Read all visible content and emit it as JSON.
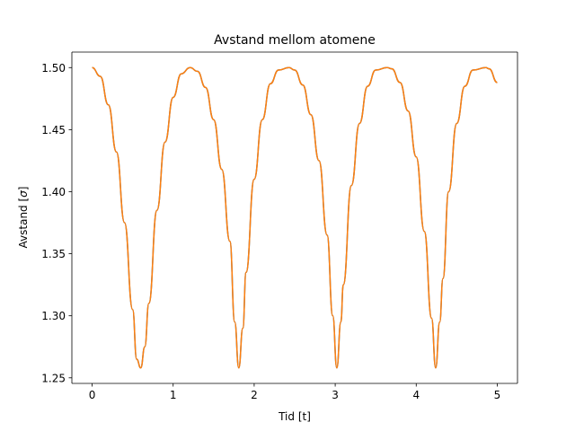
{
  "chart_data": {
    "type": "line",
    "title": "Avstand mellom atomene",
    "xlabel": "Tid [t]",
    "ylabel_prefix": "Avstand [",
    "ylabel_symbol": "σ",
    "ylabel_suffix": "]",
    "xlim": [
      -0.25,
      5.25
    ],
    "ylim": [
      1.2455,
      1.5125
    ],
    "x_ticks": [
      0,
      1,
      2,
      3,
      4,
      5
    ],
    "x_tick_labels": [
      "0",
      "1",
      "2",
      "3",
      "4",
      "5"
    ],
    "y_ticks": [
      1.25,
      1.3,
      1.35,
      1.4,
      1.45,
      1.5
    ],
    "y_tick_labels": [
      "1.25",
      "1.30",
      "1.35",
      "1.40",
      "1.45",
      "1.50"
    ],
    "grid": false,
    "series": [
      {
        "color": "#1f77b4",
        "x": [
          0,
          0.1,
          0.2,
          0.3,
          0.4,
          0.5,
          0.55,
          0.6,
          0.65,
          0.7,
          0.8,
          0.9,
          1.0,
          1.1,
          1.21,
          1.3,
          1.4,
          1.5,
          1.6,
          1.7,
          1.76,
          1.81,
          1.86,
          1.9,
          2.0,
          2.1,
          2.2,
          2.3,
          2.43,
          2.5,
          2.6,
          2.7,
          2.8,
          2.9,
          2.97,
          3.02,
          3.07,
          3.1,
          3.2,
          3.3,
          3.4,
          3.5,
          3.64,
          3.7,
          3.8,
          3.9,
          4.0,
          4.1,
          4.19,
          4.24,
          4.29,
          4.33,
          4.4,
          4.5,
          4.6,
          4.7,
          4.86,
          4.9,
          5.0
        ],
        "y": [
          1.5,
          1.493,
          1.47,
          1.432,
          1.375,
          1.305,
          1.265,
          1.258,
          1.275,
          1.31,
          1.385,
          1.44,
          1.476,
          1.495,
          1.5,
          1.497,
          1.484,
          1.458,
          1.418,
          1.36,
          1.295,
          1.258,
          1.29,
          1.335,
          1.41,
          1.458,
          1.487,
          1.498,
          1.5,
          1.498,
          1.486,
          1.462,
          1.425,
          1.365,
          1.3,
          1.258,
          1.295,
          1.325,
          1.405,
          1.455,
          1.485,
          1.498,
          1.5,
          1.499,
          1.488,
          1.465,
          1.428,
          1.368,
          1.298,
          1.258,
          1.295,
          1.33,
          1.4,
          1.455,
          1.485,
          1.498,
          1.5,
          1.499,
          1.488
        ]
      },
      {
        "color": "#ff7f0e",
        "x": [
          0,
          0.1,
          0.2,
          0.3,
          0.4,
          0.5,
          0.55,
          0.6,
          0.65,
          0.7,
          0.8,
          0.9,
          1.0,
          1.1,
          1.21,
          1.3,
          1.4,
          1.5,
          1.6,
          1.7,
          1.76,
          1.81,
          1.86,
          1.9,
          2.0,
          2.1,
          2.2,
          2.3,
          2.43,
          2.5,
          2.6,
          2.7,
          2.8,
          2.9,
          2.97,
          3.02,
          3.07,
          3.1,
          3.2,
          3.3,
          3.4,
          3.5,
          3.64,
          3.7,
          3.8,
          3.9,
          4.0,
          4.1,
          4.19,
          4.24,
          4.29,
          4.33,
          4.4,
          4.5,
          4.6,
          4.7,
          4.86,
          4.9,
          5.0
        ],
        "y": [
          1.5,
          1.493,
          1.47,
          1.432,
          1.375,
          1.305,
          1.265,
          1.258,
          1.275,
          1.31,
          1.385,
          1.44,
          1.476,
          1.495,
          1.5,
          1.497,
          1.484,
          1.458,
          1.418,
          1.36,
          1.295,
          1.258,
          1.29,
          1.335,
          1.41,
          1.458,
          1.487,
          1.498,
          1.5,
          1.498,
          1.486,
          1.462,
          1.425,
          1.365,
          1.3,
          1.258,
          1.295,
          1.325,
          1.405,
          1.455,
          1.485,
          1.498,
          1.5,
          1.499,
          1.488,
          1.465,
          1.428,
          1.368,
          1.298,
          1.258,
          1.295,
          1.33,
          1.4,
          1.455,
          1.485,
          1.498,
          1.5,
          1.499,
          1.488
        ]
      }
    ]
  }
}
